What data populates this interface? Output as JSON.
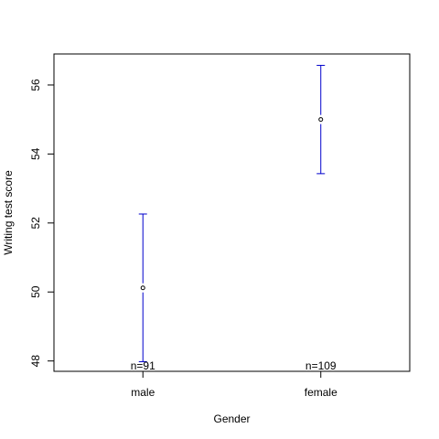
{
  "chart_data": {
    "type": "scatter",
    "subtype": "means-with-error-bars",
    "title": "",
    "xlabel": "Gender",
    "ylabel": "Writing test score",
    "categories": [
      "male",
      "female"
    ],
    "means": [
      50.12,
      55.0
    ],
    "lower": [
      47.98,
      53.43
    ],
    "upper": [
      52.26,
      56.57
    ],
    "n_labels": [
      "n=91",
      "n=109"
    ],
    "ylim": [
      47.7,
      56.9
    ],
    "yticks": [
      48,
      50,
      52,
      54,
      56
    ],
    "grid": false,
    "legend": "none",
    "colors": {
      "error_bar": "#0000cc",
      "point": "#000000",
      "axis": "#000000"
    }
  }
}
